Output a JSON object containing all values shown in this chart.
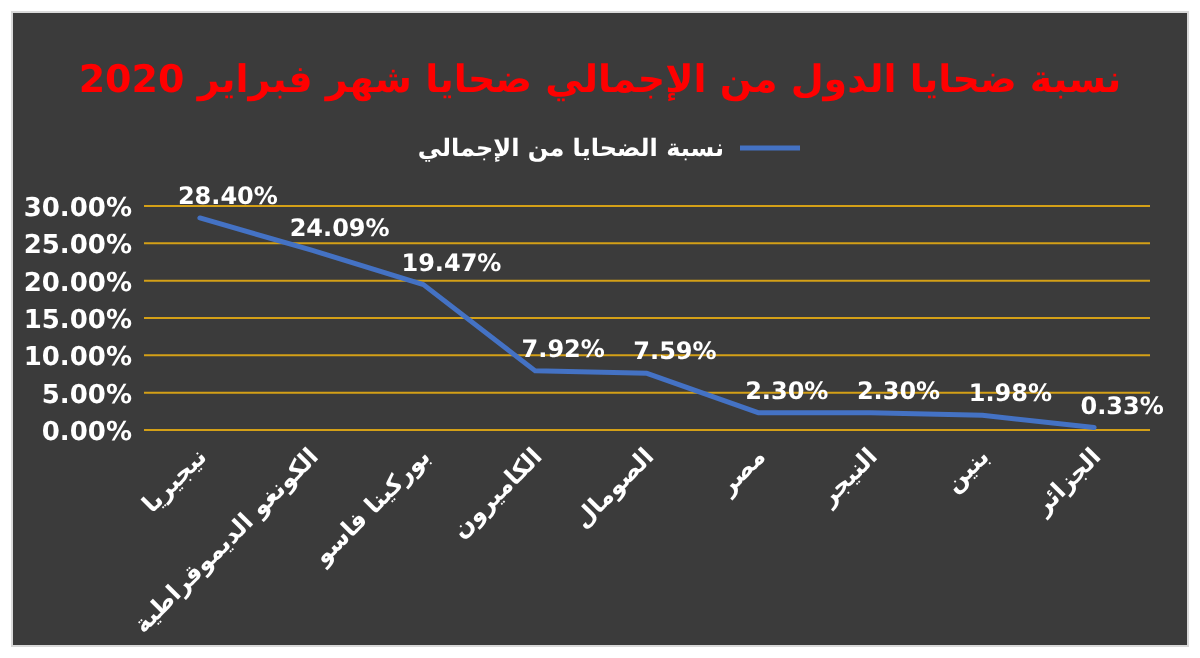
{
  "chart_data": {
    "type": "line",
    "title": "نسبة ضحايا الدول من الإجمالي ضحايا شهر فبراير 2020",
    "categories": [
      "نيجيريا",
      "الكونغو الديموقراطية",
      "بوركينا فاسو",
      "الكاميرون",
      "الصومال",
      "مصر",
      "النيجر",
      "بنين",
      "الجزائر"
    ],
    "series": [
      {
        "name": "نسبة الضحايا من الإجمالي",
        "color": "#4472c4",
        "values": [
          28.4,
          24.09,
          19.47,
          7.92,
          7.59,
          2.3,
          2.3,
          1.98,
          0.33
        ],
        "value_labels": [
          "28.40%",
          "24.09%",
          "19.47%",
          "7.92%",
          "7.59%",
          "2.30%",
          "2.30%",
          "1.98%",
          "0.33%"
        ]
      }
    ],
    "ylim": [
      0,
      30
    ],
    "yticks": [
      {
        "value": 0,
        "label": "0.00%"
      },
      {
        "value": 5,
        "label": "5.00%"
      },
      {
        "value": 10,
        "label": "10.00%"
      },
      {
        "value": 15,
        "label": "15.00%"
      },
      {
        "value": 20,
        "label": "20.00%"
      },
      {
        "value": 25,
        "label": "25.00%"
      },
      {
        "value": 30,
        "label": "30.00%"
      }
    ],
    "grid": "y",
    "legend": "top",
    "marker": "none",
    "line_style": "solid"
  }
}
